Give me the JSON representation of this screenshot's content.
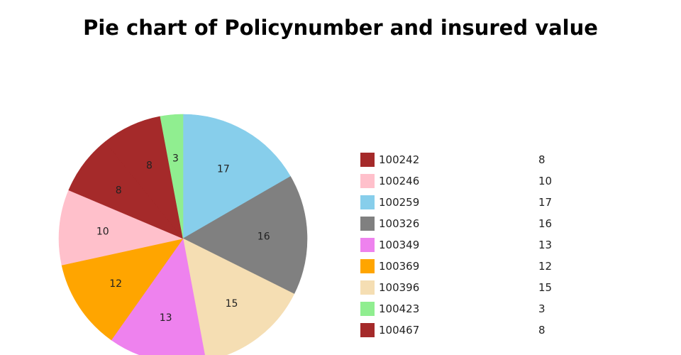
{
  "chart_data": {
    "type": "pie",
    "title": "Pie chart of Policynumber and insured value",
    "categories": [
      "100242",
      "100246",
      "100259",
      "100326",
      "100349",
      "100369",
      "100396",
      "100423",
      "100467"
    ],
    "values": [
      8,
      10,
      17,
      16,
      13,
      12,
      15,
      3,
      8
    ],
    "colors": [
      "#a52a2a",
      "#ffc0cb",
      "#87ceeb",
      "#808080",
      "#ee82ee",
      "#ffa500",
      "#f5deb3",
      "#90ee90",
      "#a52a2a"
    ],
    "slice_order": [
      "100259",
      "100326",
      "100396",
      "100349",
      "100369",
      "100246",
      "100467",
      "100242",
      "100423"
    ],
    "legend_position": "right"
  }
}
